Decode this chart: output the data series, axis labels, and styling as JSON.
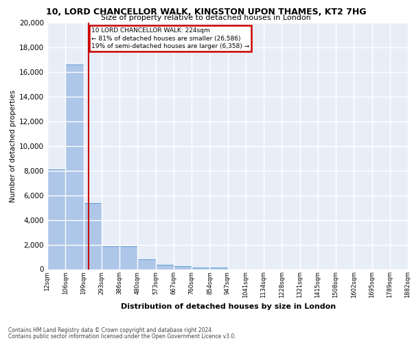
{
  "title": "10, LORD CHANCELLOR WALK, KINGSTON UPON THAMES, KT2 7HG",
  "subtitle": "Size of property relative to detached houses in London",
  "xlabel": "Distribution of detached houses by size in London",
  "ylabel": "Number of detached properties",
  "footer_line1": "Contains HM Land Registry data © Crown copyright and database right 2024.",
  "footer_line2": "Contains public sector information licensed under the Open Government Licence v3.0.",
  "bar_edges": [
    12,
    106,
    199,
    293,
    386,
    480,
    573,
    667,
    760,
    854,
    947,
    1041,
    1134,
    1228,
    1321,
    1415,
    1508,
    1602,
    1695,
    1789,
    1882
  ],
  "bar_heights": [
    8100,
    16600,
    5350,
    1850,
    1850,
    800,
    350,
    230,
    150,
    130,
    0,
    0,
    0,
    0,
    0,
    0,
    0,
    0,
    0,
    0
  ],
  "bar_color": "#aec6e8",
  "bar_edge_color": "#5a9fd4",
  "property_size": 224,
  "property_label": "10 LORD CHANCELLOR WALK: 224sqm",
  "annotation_line2": "← 81% of detached houses are smaller (26,586)",
  "annotation_line3": "19% of semi-detached houses are larger (6,358) →",
  "vline_color": "#cc0000",
  "annotation_box_color": "#cc0000",
  "bg_color": "#e8eef8",
  "grid_color": "#ffffff",
  "ylim": [
    0,
    20000
  ],
  "yticks": [
    0,
    2000,
    4000,
    6000,
    8000,
    10000,
    12000,
    14000,
    16000,
    18000,
    20000
  ],
  "xtick_labels": [
    "12sqm",
    "106sqm",
    "199sqm",
    "293sqm",
    "386sqm",
    "480sqm",
    "573sqm",
    "667sqm",
    "760sqm",
    "854sqm",
    "947sqm",
    "1041sqm",
    "1134sqm",
    "1228sqm",
    "1321sqm",
    "1415sqm",
    "1508sqm",
    "1602sqm",
    "1695sqm",
    "1789sqm",
    "1882sqm"
  ]
}
